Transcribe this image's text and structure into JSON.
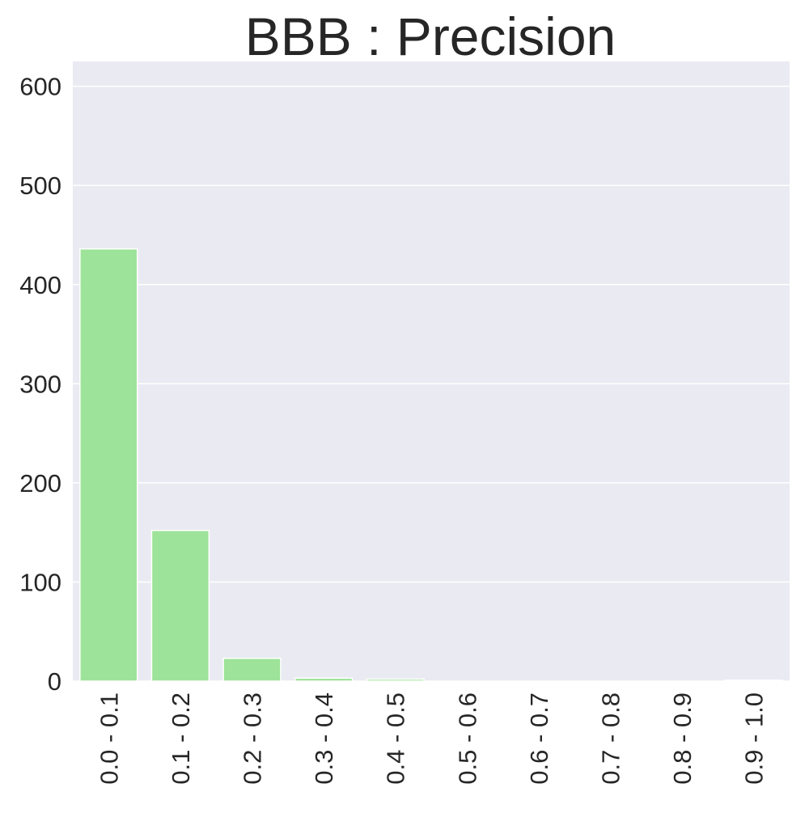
{
  "chart_data": {
    "type": "bar",
    "title": "BBB : Precision",
    "xlabel": "",
    "ylabel": "",
    "categories": [
      "0.0 - 0.1",
      "0.1 - 0.2",
      "0.2 - 0.3",
      "0.3 - 0.4",
      "0.4 - 0.5",
      "0.5 - 0.6",
      "0.6 - 0.7",
      "0.7 - 0.8",
      "0.8 - 0.9",
      "0.9 - 1.0"
    ],
    "values": [
      436,
      152,
      23,
      3,
      2,
      0,
      0,
      0,
      0,
      1
    ],
    "ylim": [
      0,
      625
    ],
    "yticks": [
      0,
      100,
      200,
      300,
      400,
      500,
      600
    ],
    "grid": true,
    "legend": "none",
    "colors": {
      "bar": "#9de39a",
      "bar_edge": "#ffffff",
      "plot_background": "#eaeaf2",
      "gridline": "#ffffff",
      "text": "#262626"
    }
  }
}
